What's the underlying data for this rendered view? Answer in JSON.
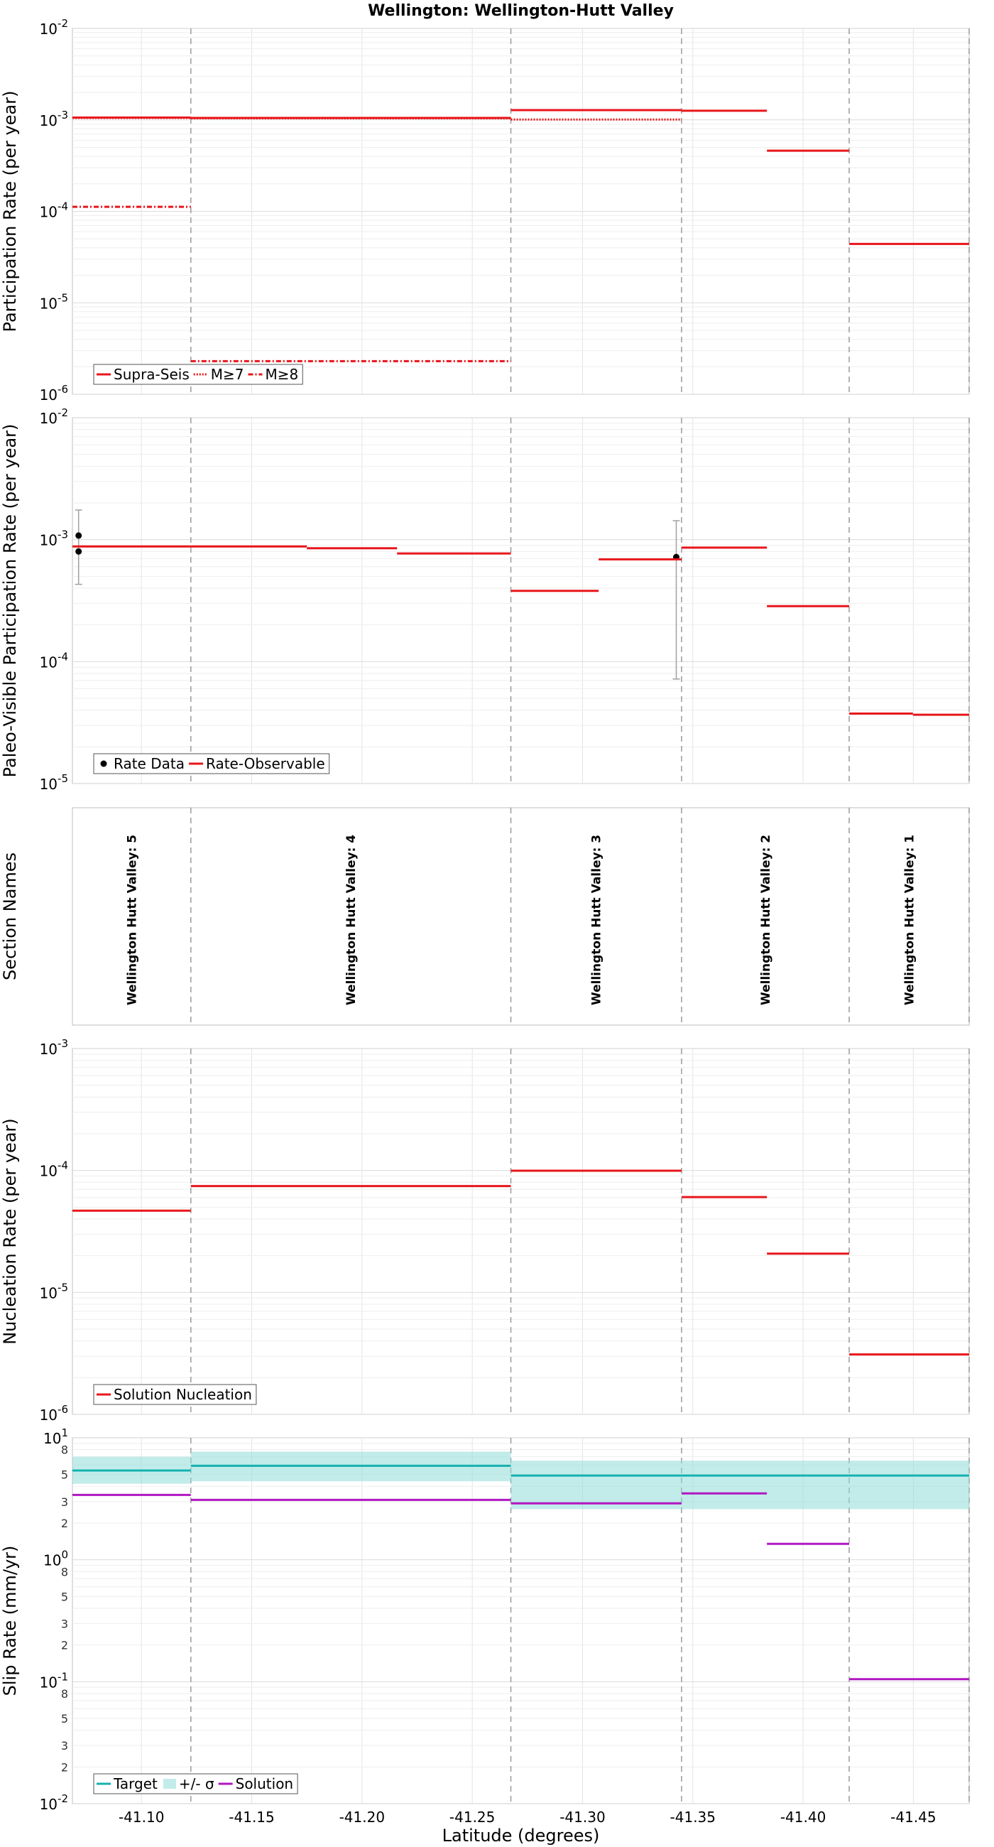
{
  "figure": {
    "title": "Wellington: Wellington-Hutt Valley",
    "xlabel": "Latitude (degrees)"
  },
  "chart_data": [
    {
      "type": "line",
      "ylabel": "Participation Rate (per year)",
      "yscale": "log",
      "ylim_exp": [
        -6,
        -2
      ],
      "grid": true,
      "legend_placement": "lower-left",
      "series": [
        {
          "name": "Supra-Seis",
          "style": "solid",
          "color": "#e8161b",
          "segments": [
            [
              -41.0687,
              -41.1224,
              0.00106
            ],
            [
              -41.1224,
              -41.2675,
              0.00105
            ],
            [
              -41.2675,
              -41.3449,
              0.00128
            ],
            [
              -41.3449,
              -41.3836,
              0.00126
            ],
            [
              -41.3836,
              -41.4209,
              0.00046
            ],
            [
              -41.4209,
              -41.4753,
              4.4e-05
            ]
          ]
        },
        {
          "name": "M≥7",
          "style": "dotted",
          "color": "#e8161b",
          "segments": [
            [
              -41.0687,
              -41.1224,
              0.00105
            ],
            [
              -41.1224,
              -41.2675,
              0.00104
            ],
            [
              -41.2675,
              -41.3449,
              0.00101
            ]
          ]
        },
        {
          "name": "M≥8",
          "style": "dashdot",
          "color": "#e8161b",
          "segments": [
            [
              -41.0687,
              -41.1224,
              0.000112
            ],
            [
              -41.1224,
              -41.2675,
              2.3e-06
            ]
          ]
        }
      ]
    },
    {
      "type": "line",
      "ylabel": "Paleo-Visible Participation Rate (per year)",
      "yscale": "log",
      "ylim_exp": [
        -5,
        -2
      ],
      "grid": true,
      "legend_placement": "lower-left",
      "series": [
        {
          "name": "Rate Data",
          "style": "points",
          "color": "#000000",
          "points": [
            [
              -41.0715,
              0.00108,
              0.00043,
              0.00175
            ],
            [
              -41.0715,
              0.0008,
              null,
              null
            ],
            [
              -41.3425,
              0.00072,
              7.2e-05,
              0.00143
            ]
          ]
        },
        {
          "name": "Rate-Observable",
          "style": "solid",
          "color": "#e8161b",
          "segments": [
            [
              -41.0687,
              -41.1224,
              0.00088
            ],
            [
              -41.1224,
              -41.175,
              0.00088
            ],
            [
              -41.175,
              -41.2159,
              0.00085
            ],
            [
              -41.2159,
              -41.2675,
              0.00077
            ],
            [
              -41.2675,
              -41.3073,
              0.00038
            ],
            [
              -41.3073,
              -41.3449,
              0.00069
            ],
            [
              -41.3449,
              -41.3836,
              0.00086
            ],
            [
              -41.3836,
              -41.4209,
              0.000285
            ],
            [
              -41.4209,
              -41.4498,
              3.75e-05
            ],
            [
              -41.4498,
              -41.4753,
              3.67e-05
            ]
          ]
        }
      ]
    },
    {
      "type": "table",
      "ylabel": "Section Names",
      "sections": [
        {
          "name": "Wellington Hutt Valley: 5",
          "from": -41.0687,
          "to": -41.1224
        },
        {
          "name": "Wellington Hutt Valley: 4",
          "from": -41.1224,
          "to": -41.2675
        },
        {
          "name": "Wellington Hutt Valley: 3",
          "from": -41.2675,
          "to": -41.3449
        },
        {
          "name": "Wellington Hutt Valley: 2",
          "from": -41.3449,
          "to": -41.4209
        },
        {
          "name": "Wellington Hutt Valley: 1",
          "from": -41.4209,
          "to": -41.4753
        }
      ]
    },
    {
      "type": "line",
      "ylabel": "Nucleation Rate (per year)",
      "yscale": "log",
      "ylim_exp": [
        -6,
        -3
      ],
      "grid": true,
      "legend_placement": "lower-left",
      "series": [
        {
          "name": "Solution Nucleation",
          "style": "solid",
          "color": "#e8161b",
          "segments": [
            [
              -41.0687,
              -41.1224,
              4.68e-05
            ],
            [
              -41.1224,
              -41.2675,
              7.45e-05
            ],
            [
              -41.2675,
              -41.3449,
              9.95e-05
            ],
            [
              -41.3449,
              -41.3836,
              6.05e-05
            ],
            [
              -41.3836,
              -41.4209,
              2.08e-05
            ],
            [
              -41.4209,
              -41.4753,
              3.1e-06
            ]
          ]
        }
      ]
    },
    {
      "type": "area",
      "ylabel": "Slip Rate (mm/yr)",
      "yscale": "log",
      "ylim_exp": [
        -2,
        1
      ],
      "grid": true,
      "legend_placement": "lower-left",
      "series": [
        {
          "name": "Target",
          "style": "solid",
          "color": "#14b2ae",
          "segments": [
            [
              -41.0687,
              -41.1224,
              5.4
            ],
            [
              -41.1224,
              -41.2675,
              5.9
            ],
            [
              -41.2675,
              -41.4753,
              4.9
            ]
          ]
        },
        {
          "name": "+/- σ",
          "style": "band",
          "color": "#8fdcd9",
          "segments": [
            [
              -41.0687,
              -41.1224,
              4.2,
              7.0
            ],
            [
              -41.1224,
              -41.2675,
              4.4,
              7.7
            ],
            [
              -41.2675,
              -41.4753,
              2.6,
              6.5
            ]
          ]
        },
        {
          "name": "Solution",
          "style": "solid",
          "color": "#b117c2",
          "segments": [
            [
              -41.0687,
              -41.1224,
              3.4
            ],
            [
              -41.1224,
              -41.2675,
              3.1
            ],
            [
              -41.2675,
              -41.3449,
              2.9
            ],
            [
              -41.3449,
              -41.3836,
              3.5
            ],
            [
              -41.3836,
              -41.4209,
              1.35
            ],
            [
              -41.4209,
              -41.4753,
              0.105
            ]
          ]
        }
      ]
    }
  ],
  "x_axis": {
    "xlim": [
      -41.0687,
      -41.4753
    ],
    "ticks": [
      -41.1,
      -41.15,
      -41.2,
      -41.25,
      -41.3,
      -41.35,
      -41.4,
      -41.45
    ],
    "tick_labels": [
      "-41.10",
      "-41.15",
      "-41.20",
      "-41.25",
      "-41.30",
      "-41.35",
      "-41.40",
      "-41.45"
    ],
    "section_boundaries": [
      -41.1224,
      -41.2675,
      -41.3449,
      -41.4209,
      -41.4753
    ]
  },
  "minor_tick_labels": [
    "8",
    "5",
    "3",
    "2"
  ]
}
